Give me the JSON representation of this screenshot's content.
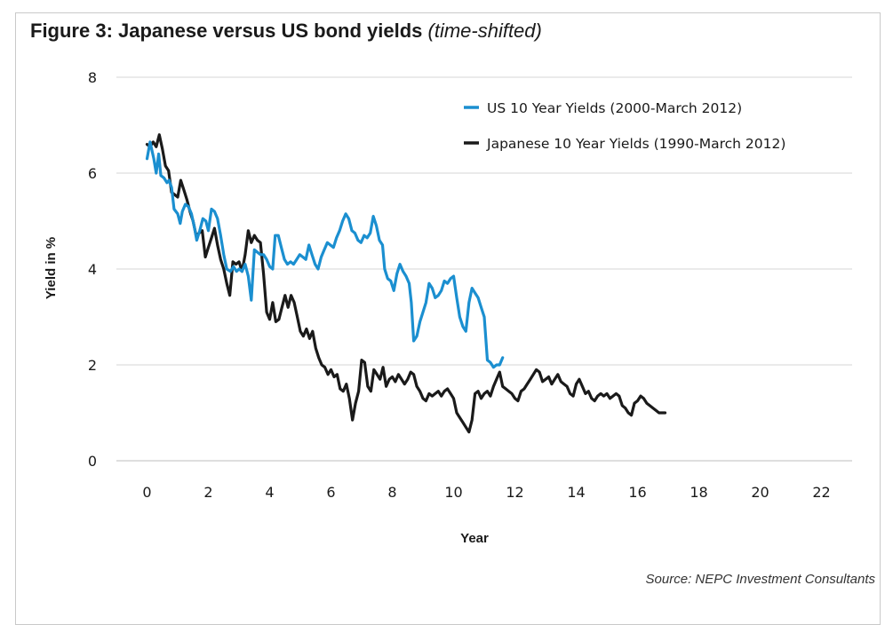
{
  "figure": {
    "title_bold": "Figure 3: Japanese versus US bond yields",
    "title_note": "(time-shifted)",
    "source": "Source: NEPC Investment Consultants"
  },
  "chart_data": {
    "type": "line",
    "xlabel": "Year",
    "ylabel": "Yield in %",
    "xlim": [
      -1,
      23
    ],
    "ylim": [
      0,
      8
    ],
    "xticks": [
      0,
      2,
      4,
      6,
      8,
      10,
      12,
      14,
      16,
      18,
      20,
      22
    ],
    "yticks": [
      0,
      2,
      4,
      6,
      8
    ],
    "grid": "horizontal",
    "legend_position": "top-right",
    "series": [
      {
        "name": "US 10 Year Yields (2000-March 2012)",
        "color": "#1b8fd0",
        "points": [
          [
            0.0,
            6.3
          ],
          [
            0.1,
            6.65
          ],
          [
            0.22,
            6.3
          ],
          [
            0.3,
            6.0
          ],
          [
            0.38,
            6.4
          ],
          [
            0.45,
            5.95
          ],
          [
            0.55,
            5.9
          ],
          [
            0.65,
            5.8
          ],
          [
            0.72,
            5.85
          ],
          [
            0.8,
            5.7
          ],
          [
            0.88,
            5.25
          ],
          [
            1.0,
            5.15
          ],
          [
            1.08,
            4.95
          ],
          [
            1.15,
            5.2
          ],
          [
            1.25,
            5.35
          ],
          [
            1.35,
            5.3
          ],
          [
            1.45,
            5.15
          ],
          [
            1.55,
            4.85
          ],
          [
            1.62,
            4.6
          ],
          [
            1.72,
            4.8
          ],
          [
            1.82,
            5.05
          ],
          [
            1.92,
            5.0
          ],
          [
            2.0,
            4.8
          ],
          [
            2.1,
            5.25
          ],
          [
            2.2,
            5.2
          ],
          [
            2.3,
            5.05
          ],
          [
            2.4,
            4.7
          ],
          [
            2.5,
            4.3
          ],
          [
            2.6,
            4.0
          ],
          [
            2.72,
            3.95
          ],
          [
            2.82,
            4.05
          ],
          [
            2.92,
            3.95
          ],
          [
            3.0,
            4.0
          ],
          [
            3.1,
            3.95
          ],
          [
            3.2,
            4.1
          ],
          [
            3.3,
            3.85
          ],
          [
            3.4,
            3.35
          ],
          [
            3.5,
            4.4
          ],
          [
            3.6,
            4.35
          ],
          [
            3.7,
            4.3
          ],
          [
            3.8,
            4.3
          ],
          [
            3.9,
            4.2
          ],
          [
            4.0,
            4.05
          ],
          [
            4.1,
            4.0
          ],
          [
            4.18,
            4.7
          ],
          [
            4.28,
            4.7
          ],
          [
            4.38,
            4.45
          ],
          [
            4.48,
            4.2
          ],
          [
            4.58,
            4.1
          ],
          [
            4.68,
            4.15
          ],
          [
            4.78,
            4.1
          ],
          [
            4.88,
            4.2
          ],
          [
            4.98,
            4.3
          ],
          [
            5.08,
            4.25
          ],
          [
            5.18,
            4.2
          ],
          [
            5.28,
            4.5
          ],
          [
            5.38,
            4.3
          ],
          [
            5.48,
            4.1
          ],
          [
            5.58,
            4.0
          ],
          [
            5.68,
            4.25
          ],
          [
            5.78,
            4.4
          ],
          [
            5.88,
            4.55
          ],
          [
            5.98,
            4.5
          ],
          [
            6.08,
            4.45
          ],
          [
            6.18,
            4.65
          ],
          [
            6.28,
            4.8
          ],
          [
            6.38,
            5.0
          ],
          [
            6.48,
            5.15
          ],
          [
            6.58,
            5.05
          ],
          [
            6.68,
            4.8
          ],
          [
            6.78,
            4.75
          ],
          [
            6.88,
            4.6
          ],
          [
            6.98,
            4.55
          ],
          [
            7.08,
            4.7
          ],
          [
            7.18,
            4.65
          ],
          [
            7.28,
            4.75
          ],
          [
            7.38,
            5.1
          ],
          [
            7.48,
            4.9
          ],
          [
            7.58,
            4.6
          ],
          [
            7.68,
            4.5
          ],
          [
            7.75,
            4.0
          ],
          [
            7.85,
            3.8
          ],
          [
            7.95,
            3.75
          ],
          [
            8.05,
            3.55
          ],
          [
            8.15,
            3.9
          ],
          [
            8.25,
            4.1
          ],
          [
            8.35,
            3.95
          ],
          [
            8.45,
            3.85
          ],
          [
            8.55,
            3.7
          ],
          [
            8.62,
            3.3
          ],
          [
            8.7,
            2.5
          ],
          [
            8.8,
            2.6
          ],
          [
            8.9,
            2.9
          ],
          [
            9.0,
            3.1
          ],
          [
            9.1,
            3.3
          ],
          [
            9.2,
            3.7
          ],
          [
            9.3,
            3.6
          ],
          [
            9.4,
            3.4
          ],
          [
            9.5,
            3.45
          ],
          [
            9.6,
            3.55
          ],
          [
            9.7,
            3.75
          ],
          [
            9.8,
            3.7
          ],
          [
            9.9,
            3.8
          ],
          [
            10.0,
            3.85
          ],
          [
            10.1,
            3.4
          ],
          [
            10.2,
            3.0
          ],
          [
            10.3,
            2.8
          ],
          [
            10.4,
            2.7
          ],
          [
            10.5,
            3.3
          ],
          [
            10.6,
            3.6
          ],
          [
            10.7,
            3.5
          ],
          [
            10.8,
            3.4
          ],
          [
            10.9,
            3.2
          ],
          [
            11.0,
            3.0
          ],
          [
            11.1,
            2.1
          ],
          [
            11.2,
            2.05
          ],
          [
            11.3,
            1.95
          ],
          [
            11.4,
            2.0
          ],
          [
            11.5,
            2.0
          ],
          [
            11.6,
            2.15
          ]
        ]
      },
      {
        "name": "Japanese 10 Year Yields (1990-March 2012)",
        "color": "#1a1a1a",
        "points": [
          [
            0.0,
            6.6
          ],
          [
            0.1,
            6.55
          ],
          [
            0.2,
            6.65
          ],
          [
            0.3,
            6.55
          ],
          [
            0.4,
            6.8
          ],
          [
            0.5,
            6.5
          ],
          [
            0.6,
            6.15
          ],
          [
            0.7,
            6.05
          ],
          [
            0.8,
            5.6
          ],
          [
            0.9,
            5.55
          ],
          [
            1.0,
            5.5
          ],
          [
            1.1,
            5.85
          ],
          [
            1.2,
            5.65
          ],
          [
            1.3,
            5.45
          ],
          [
            1.4,
            5.2
          ],
          [
            1.5,
            5.0
          ],
          [
            1.6,
            4.7
          ],
          [
            1.7,
            4.75
          ],
          [
            1.8,
            4.8
          ],
          [
            1.9,
            4.25
          ],
          [
            2.0,
            4.45
          ],
          [
            2.1,
            4.65
          ],
          [
            2.2,
            4.85
          ],
          [
            2.3,
            4.5
          ],
          [
            2.4,
            4.2
          ],
          [
            2.5,
            4.0
          ],
          [
            2.6,
            3.7
          ],
          [
            2.7,
            3.45
          ],
          [
            2.8,
            4.15
          ],
          [
            2.9,
            4.1
          ],
          [
            3.0,
            4.15
          ],
          [
            3.1,
            3.95
          ],
          [
            3.2,
            4.3
          ],
          [
            3.3,
            4.8
          ],
          [
            3.4,
            4.55
          ],
          [
            3.5,
            4.7
          ],
          [
            3.6,
            4.6
          ],
          [
            3.7,
            4.55
          ],
          [
            3.8,
            3.9
          ],
          [
            3.9,
            3.1
          ],
          [
            4.0,
            2.95
          ],
          [
            4.1,
            3.3
          ],
          [
            4.2,
            2.9
          ],
          [
            4.3,
            2.95
          ],
          [
            4.4,
            3.2
          ],
          [
            4.5,
            3.45
          ],
          [
            4.6,
            3.2
          ],
          [
            4.7,
            3.45
          ],
          [
            4.8,
            3.3
          ],
          [
            4.9,
            3.0
          ],
          [
            5.0,
            2.7
          ],
          [
            5.1,
            2.6
          ],
          [
            5.2,
            2.75
          ],
          [
            5.3,
            2.55
          ],
          [
            5.4,
            2.7
          ],
          [
            5.5,
            2.35
          ],
          [
            5.6,
            2.15
          ],
          [
            5.7,
            2.0
          ],
          [
            5.8,
            1.95
          ],
          [
            5.9,
            1.8
          ],
          [
            6.0,
            1.9
          ],
          [
            6.1,
            1.75
          ],
          [
            6.2,
            1.8
          ],
          [
            6.3,
            1.5
          ],
          [
            6.4,
            1.45
          ],
          [
            6.5,
            1.6
          ],
          [
            6.6,
            1.3
          ],
          [
            6.7,
            0.85
          ],
          [
            6.8,
            1.2
          ],
          [
            6.9,
            1.45
          ],
          [
            7.0,
            2.1
          ],
          [
            7.1,
            2.05
          ],
          [
            7.2,
            1.55
          ],
          [
            7.3,
            1.45
          ],
          [
            7.4,
            1.9
          ],
          [
            7.5,
            1.8
          ],
          [
            7.6,
            1.7
          ],
          [
            7.7,
            1.95
          ],
          [
            7.8,
            1.55
          ],
          [
            7.9,
            1.7
          ],
          [
            8.0,
            1.75
          ],
          [
            8.1,
            1.65
          ],
          [
            8.2,
            1.8
          ],
          [
            8.3,
            1.7
          ],
          [
            8.4,
            1.6
          ],
          [
            8.5,
            1.7
          ],
          [
            8.6,
            1.85
          ],
          [
            8.7,
            1.8
          ],
          [
            8.8,
            1.55
          ],
          [
            8.9,
            1.45
          ],
          [
            9.0,
            1.3
          ],
          [
            9.1,
            1.25
          ],
          [
            9.2,
            1.4
          ],
          [
            9.3,
            1.35
          ],
          [
            9.4,
            1.4
          ],
          [
            9.5,
            1.45
          ],
          [
            9.6,
            1.35
          ],
          [
            9.7,
            1.45
          ],
          [
            9.8,
            1.5
          ],
          [
            9.9,
            1.4
          ],
          [
            10.0,
            1.3
          ],
          [
            10.1,
            1.0
          ],
          [
            10.2,
            0.9
          ],
          [
            10.3,
            0.8
          ],
          [
            10.4,
            0.7
          ],
          [
            10.5,
            0.6
          ],
          [
            10.6,
            0.85
          ],
          [
            10.7,
            1.4
          ],
          [
            10.8,
            1.45
          ],
          [
            10.9,
            1.3
          ],
          [
            11.0,
            1.4
          ],
          [
            11.1,
            1.45
          ],
          [
            11.2,
            1.35
          ],
          [
            11.3,
            1.55
          ],
          [
            11.4,
            1.7
          ],
          [
            11.5,
            1.85
          ],
          [
            11.6,
            1.55
          ],
          [
            11.7,
            1.5
          ],
          [
            11.8,
            1.45
          ],
          [
            11.9,
            1.4
          ],
          [
            12.0,
            1.3
          ],
          [
            12.1,
            1.25
          ],
          [
            12.2,
            1.45
          ],
          [
            12.3,
            1.5
          ],
          [
            12.4,
            1.6
          ],
          [
            12.5,
            1.7
          ],
          [
            12.6,
            1.8
          ],
          [
            12.7,
            1.9
          ],
          [
            12.8,
            1.85
          ],
          [
            12.9,
            1.65
          ],
          [
            13.0,
            1.7
          ],
          [
            13.1,
            1.75
          ],
          [
            13.2,
            1.6
          ],
          [
            13.3,
            1.7
          ],
          [
            13.4,
            1.8
          ],
          [
            13.5,
            1.65
          ],
          [
            13.6,
            1.6
          ],
          [
            13.7,
            1.55
          ],
          [
            13.8,
            1.4
          ],
          [
            13.9,
            1.35
          ],
          [
            14.0,
            1.6
          ],
          [
            14.1,
            1.7
          ],
          [
            14.2,
            1.55
          ],
          [
            14.3,
            1.4
          ],
          [
            14.4,
            1.45
          ],
          [
            14.5,
            1.3
          ],
          [
            14.6,
            1.25
          ],
          [
            14.7,
            1.35
          ],
          [
            14.8,
            1.4
          ],
          [
            14.9,
            1.35
          ],
          [
            15.0,
            1.4
          ],
          [
            15.1,
            1.3
          ],
          [
            15.2,
            1.35
          ],
          [
            15.3,
            1.4
          ],
          [
            15.4,
            1.35
          ],
          [
            15.5,
            1.15
          ],
          [
            15.6,
            1.1
          ],
          [
            15.7,
            1.0
          ],
          [
            15.8,
            0.95
          ],
          [
            15.9,
            1.2
          ],
          [
            16.0,
            1.25
          ],
          [
            16.1,
            1.35
          ],
          [
            16.2,
            1.3
          ],
          [
            16.3,
            1.2
          ],
          [
            16.4,
            1.15
          ],
          [
            16.5,
            1.1
          ],
          [
            16.6,
            1.05
          ],
          [
            16.7,
            1.0
          ],
          [
            16.8,
            1.0
          ],
          [
            16.9,
            1.0
          ]
        ]
      }
    ]
  }
}
